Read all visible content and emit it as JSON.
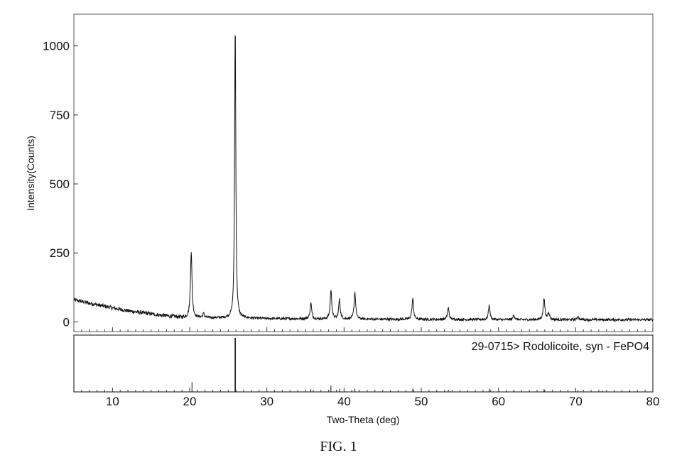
{
  "caption": "FIG. 1",
  "chart_data": {
    "type": "line",
    "title": "",
    "xlabel": "Two-Theta (deg)",
    "ylabel": "Intensity(Counts)",
    "xlim": [
      5,
      80
    ],
    "ylim": [
      -35,
      1115
    ],
    "x_ticks": [
      10,
      20,
      30,
      40,
      50,
      60,
      70,
      80
    ],
    "y_ticks": [
      0,
      250,
      500,
      750,
      1000
    ],
    "grid": false,
    "line_color": "#111111",
    "background_baseline": [
      [
        5,
        80
      ],
      [
        8,
        62
      ],
      [
        12,
        40
      ],
      [
        16,
        25
      ],
      [
        19,
        16
      ],
      [
        25,
        14
      ],
      [
        30,
        12
      ],
      [
        40,
        10
      ],
      [
        50,
        9
      ],
      [
        60,
        8
      ],
      [
        70,
        8
      ],
      [
        80,
        8
      ]
    ],
    "peaks": [
      {
        "x": 20.2,
        "y": 255
      },
      {
        "x": 21.8,
        "y": 30
      },
      {
        "x": 25.9,
        "y": 1085
      },
      {
        "x": 35.7,
        "y": 70
      },
      {
        "x": 38.3,
        "y": 115
      },
      {
        "x": 39.4,
        "y": 80
      },
      {
        "x": 41.4,
        "y": 108
      },
      {
        "x": 48.9,
        "y": 85
      },
      {
        "x": 53.5,
        "y": 52
      },
      {
        "x": 58.8,
        "y": 60
      },
      {
        "x": 62.0,
        "y": 26
      },
      {
        "x": 65.9,
        "y": 88
      },
      {
        "x": 66.5,
        "y": 35
      },
      {
        "x": 70.3,
        "y": 20
      }
    ],
    "reference_pattern": {
      "label": "29-0715> Rodolicoite, syn - FePO4",
      "lines": [
        {
          "x": 20.3,
          "intensity": 18
        },
        {
          "x": 25.9,
          "intensity": 100
        },
        {
          "x": 35.7,
          "intensity": 5
        },
        {
          "x": 38.3,
          "intensity": 12
        },
        {
          "x": 39.4,
          "intensity": 6
        },
        {
          "x": 41.4,
          "intensity": 6
        },
        {
          "x": 48.9,
          "intensity": 6
        },
        {
          "x": 53.5,
          "intensity": 4
        },
        {
          "x": 58.8,
          "intensity": 6
        },
        {
          "x": 62.0,
          "intensity": 3
        },
        {
          "x": 65.9,
          "intensity": 5
        },
        {
          "x": 70.3,
          "intensity": 3
        },
        {
          "x": 73.5,
          "intensity": 2
        },
        {
          "x": 77.0,
          "intensity": 2
        }
      ]
    }
  }
}
